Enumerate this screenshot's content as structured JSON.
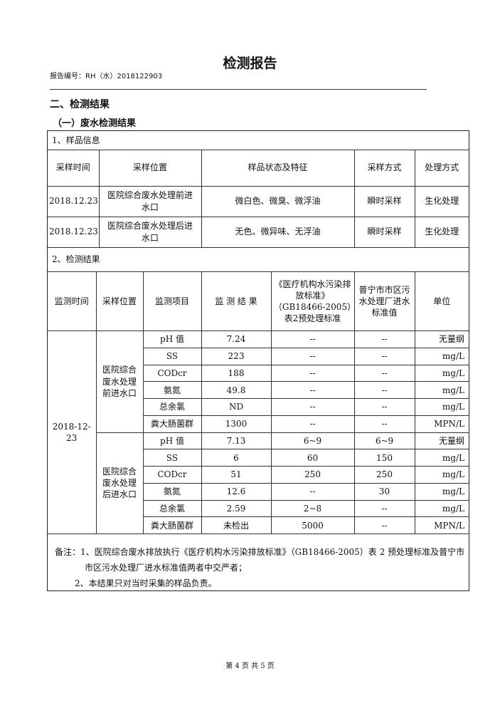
{
  "title": "检测报告",
  "report_number": "报告编号：RH（水）2018122903",
  "section": "二、检测结果",
  "subsection": "（一）废水检测结果",
  "sample_info": {
    "caption": "1、样品信息",
    "headers": [
      "采样时间",
      "采样位置",
      "样品状态及特征",
      "采样方式",
      "处理方式"
    ],
    "rows": [
      [
        "2018.12.23",
        "医院综合废水处理前进水口",
        "微白色、微臭、微浮油",
        "瞬时采样",
        "生化处理"
      ],
      [
        "2018.12.23",
        "医院综合废水处理后进水口",
        "无色、微异味、无浮油",
        "瞬时采样",
        "生化处理"
      ]
    ]
  },
  "results": {
    "caption": "2、检测结果",
    "headers": [
      "监测时间",
      "采样位置",
      "监测项目",
      "监 测 结 果",
      "《医疗机构水污染排放标准》（GB18466-2005）表2预处理标准",
      "普宁市市区污水处理厂进水标准值",
      "单位"
    ],
    "date": "2018-12-23",
    "groups": [
      {
        "location": "医院综合废水处理前进水口",
        "rows": [
          [
            "pH 值",
            "7.24",
            "--",
            "--",
            "无量纲"
          ],
          [
            "SS",
            "223",
            "--",
            "--",
            "mg/L"
          ],
          [
            "CODcr",
            "188",
            "--",
            "--",
            "mg/L"
          ],
          [
            "氨氮",
            "49.8",
            "--",
            "--",
            "mg/L"
          ],
          [
            "总余氯",
            "ND",
            "--",
            "--",
            "mg/L"
          ],
          [
            "粪大肠菌群",
            "1300",
            "--",
            "--",
            "MPN/L"
          ]
        ]
      },
      {
        "location": "医院综合废水处理后进水口",
        "rows": [
          [
            "pH 值",
            "7.13",
            "6~9",
            "6~9",
            "无量纲"
          ],
          [
            "SS",
            "6",
            "60",
            "150",
            "mg/L"
          ],
          [
            "CODcr",
            "51",
            "250",
            "250",
            "mg/L"
          ],
          [
            "氨氮",
            "12.6",
            "--",
            "30",
            "mg/L"
          ],
          [
            "总余氯",
            "2.59",
            "2~8",
            "--",
            "mg/L"
          ],
          [
            "粪大肠菌群",
            "未检出",
            "5000",
            "--",
            "MPN/L"
          ]
        ]
      }
    ]
  },
  "notes": [
    "备注：1、医院综合废水排放执行《医疗机构水污染排放标准》（GB18466-2005）表 2 预处理标准及普宁市",
    "市区污水处理厂进水标准值两者中交严者；",
    "2、本结果只对当时采集的样品负责。"
  ],
  "footer": "第 4 页 共 5 页"
}
